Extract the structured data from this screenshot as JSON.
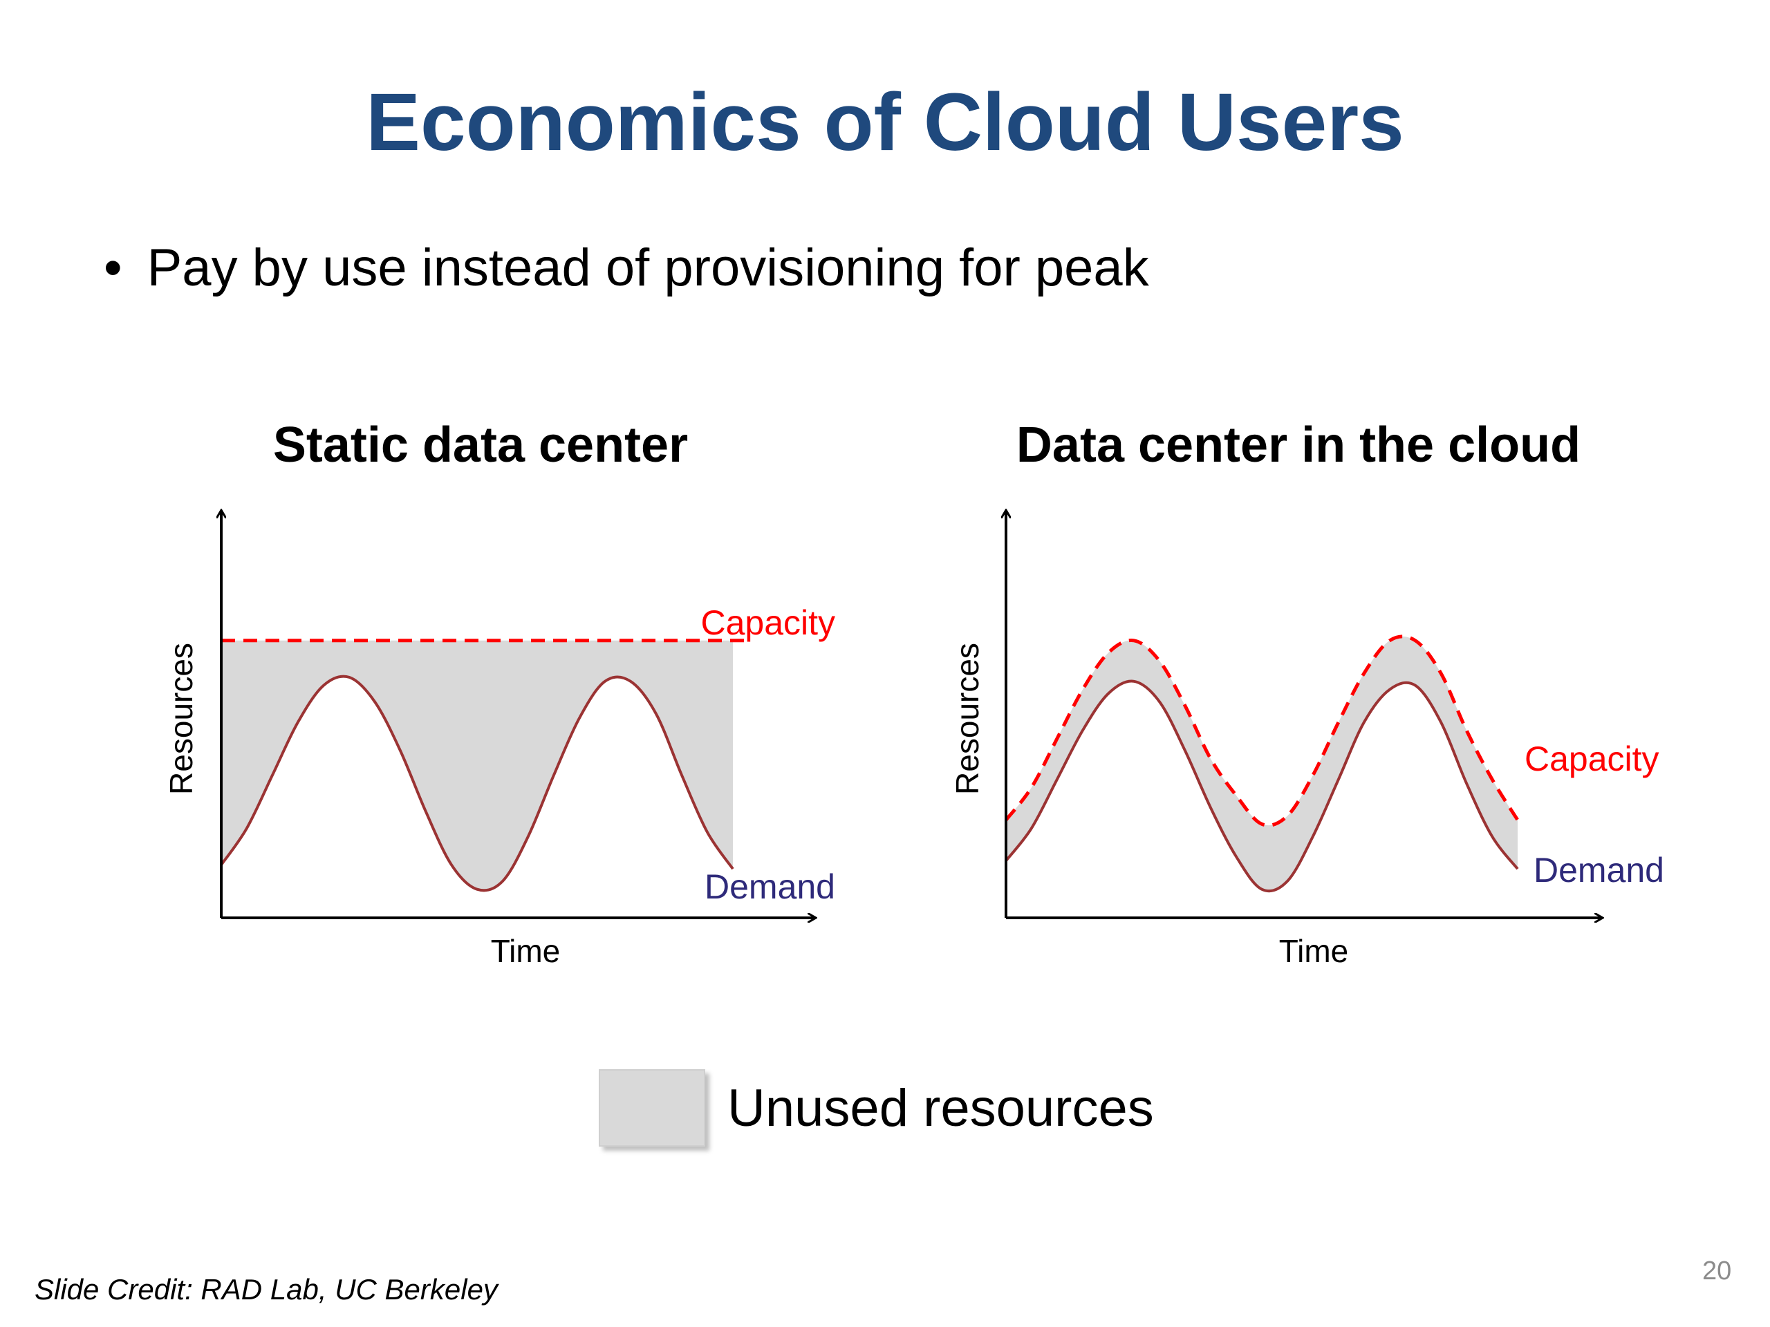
{
  "slide": {
    "title": "Economics of Cloud Users",
    "bullet": "Pay by use instead of provisioning for peak",
    "legend_label": "Unused resources",
    "credit": "Slide Credit: RAD Lab, UC Berkeley",
    "page_number": "20"
  },
  "colors": {
    "title": "#1f497d",
    "capacity": "#ff0000",
    "demand_line": "#9b3333",
    "demand_label": "#2e2a7a",
    "unused": "#d9d9d9"
  },
  "chart_data": [
    {
      "type": "area",
      "title": "Static data center",
      "xlabel": "Time",
      "ylabel": "Resources",
      "xlim": [
        0,
        1
      ],
      "ylim": [
        0,
        1
      ],
      "grid": false,
      "series": [
        {
          "name": "Capacity",
          "style": "dashed",
          "x": [
            0,
            1
          ],
          "y": [
            0.68,
            0.68
          ]
        },
        {
          "name": "Demand",
          "style": "solid",
          "x": [
            0,
            0.05,
            0.1,
            0.15,
            0.2,
            0.25,
            0.3,
            0.35,
            0.4,
            0.45,
            0.5,
            0.55,
            0.6,
            0.65,
            0.7,
            0.75,
            0.8,
            0.85,
            0.9,
            0.95,
            1.0
          ],
          "y": [
            0.13,
            0.22,
            0.35,
            0.48,
            0.57,
            0.59,
            0.53,
            0.41,
            0.26,
            0.13,
            0.07,
            0.09,
            0.2,
            0.35,
            0.49,
            0.58,
            0.58,
            0.5,
            0.35,
            0.21,
            0.12
          ]
        }
      ],
      "shaded_region": "between Capacity and Demand"
    },
    {
      "type": "area",
      "title": "Data center in the cloud",
      "xlabel": "Time",
      "ylabel": "Resources",
      "xlim": [
        0,
        1
      ],
      "ylim": [
        0,
        1
      ],
      "grid": false,
      "series": [
        {
          "name": "Capacity",
          "style": "dashed",
          "x": [
            0,
            0.05,
            0.1,
            0.15,
            0.2,
            0.25,
            0.3,
            0.35,
            0.4,
            0.45,
            0.5,
            0.55,
            0.6,
            0.65,
            0.7,
            0.75,
            0.8,
            0.85,
            0.9,
            0.95,
            1.0
          ],
          "y": [
            0.24,
            0.32,
            0.44,
            0.56,
            0.65,
            0.68,
            0.63,
            0.52,
            0.39,
            0.3,
            0.23,
            0.25,
            0.35,
            0.48,
            0.6,
            0.68,
            0.68,
            0.6,
            0.46,
            0.34,
            0.24
          ]
        },
        {
          "name": "Demand",
          "style": "solid",
          "x": [
            0,
            0.05,
            0.1,
            0.15,
            0.2,
            0.25,
            0.3,
            0.35,
            0.4,
            0.45,
            0.5,
            0.55,
            0.6,
            0.65,
            0.7,
            0.75,
            0.8,
            0.85,
            0.9,
            0.95,
            1.0
          ],
          "y": [
            0.14,
            0.22,
            0.34,
            0.46,
            0.55,
            0.58,
            0.53,
            0.41,
            0.27,
            0.15,
            0.07,
            0.09,
            0.2,
            0.34,
            0.48,
            0.56,
            0.57,
            0.48,
            0.33,
            0.2,
            0.12
          ]
        }
      ],
      "shaded_region": "between Capacity and Demand"
    }
  ]
}
